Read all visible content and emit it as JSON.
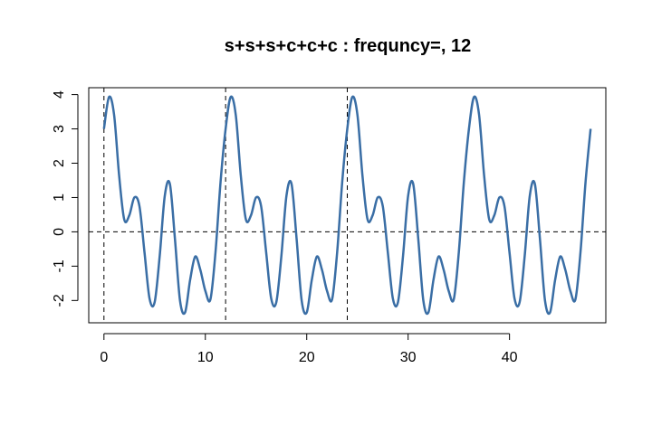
{
  "chart_data": {
    "type": "line",
    "title": "s+s+s+c+c+c : frequncy=, 12",
    "xlabel": "",
    "ylabel": "",
    "xlim": [
      -1.5,
      49.5
    ],
    "ylim": [
      -2.65,
      4.2
    ],
    "x_ticks": [
      0,
      10,
      20,
      30,
      40
    ],
    "y_ticks": [
      -2,
      -1,
      0,
      1,
      2,
      3,
      4
    ],
    "grid": false,
    "period": 12,
    "vertical_reference_lines": [
      0,
      12,
      24
    ],
    "horizontal_reference_lines": [
      0
    ],
    "line_color": "#3a6ea5",
    "series": [
      {
        "values_description_x": [
          0,
          0.5,
          1,
          1.5,
          2,
          2.5,
          3,
          3.5,
          4,
          4.5,
          5,
          5.5,
          6,
          6.5,
          7,
          7.5,
          8,
          8.5,
          9,
          9.5,
          10,
          10.5,
          11,
          11.5,
          12,
          12.5,
          13,
          13.5,
          14,
          14.5,
          15,
          15.5,
          16,
          16.5,
          17,
          17.5,
          18,
          18.5,
          19,
          19.5,
          20,
          20.5,
          21,
          21.5,
          22,
          22.5,
          23,
          23.5,
          24,
          24.5,
          25,
          25.5,
          26,
          26.5,
          27,
          27.5,
          28,
          28.5,
          29,
          29.5,
          30,
          30.5,
          31,
          31.5,
          32,
          32.5,
          33,
          33.5,
          34,
          34.5,
          35,
          35.5,
          36,
          36.5,
          37,
          37.5,
          38,
          38.5,
          39,
          39.5,
          40,
          40.5,
          41,
          41.5,
          42,
          42.5,
          43,
          43.5,
          44,
          44.5,
          45,
          45.5,
          46,
          46.5,
          47,
          47.5,
          48
        ],
        "values": [
          3.0,
          3.93,
          3.41,
          1.63,
          0.36,
          0.48,
          1.0,
          0.75,
          -0.6,
          -1.95,
          -2.05,
          -0.7,
          1.05,
          1.4,
          -0.2,
          -2.0,
          -2.35,
          -1.4,
          -0.72,
          -1.1,
          -1.72,
          -1.97,
          -0.6,
          1.45,
          3.0,
          3.93,
          3.41,
          1.63,
          0.36,
          0.48,
          1.0,
          0.75,
          -0.6,
          -1.95,
          -2.05,
          -0.7,
          1.05,
          1.4,
          -0.2,
          -2.0,
          -2.35,
          -1.4,
          -0.72,
          -1.1,
          -1.72,
          -1.97,
          -0.6,
          1.45,
          3.0,
          3.93,
          3.41,
          1.63,
          0.36,
          0.48,
          1.0,
          0.75,
          -0.6,
          -1.95,
          -2.05,
          -0.7,
          1.05,
          1.4,
          -0.2,
          -2.0,
          -2.35,
          -1.4,
          -0.72,
          -1.1,
          -1.72,
          -1.97,
          -0.6,
          1.45,
          3.0,
          3.93,
          3.41,
          1.63,
          0.36,
          0.48,
          1.0,
          0.75,
          -0.6,
          -1.95,
          -2.05,
          -0.7,
          1.05,
          1.4,
          -0.2,
          -2.0,
          -2.35,
          -1.4,
          -0.72,
          -1.1,
          -1.72,
          -1.97,
          -0.6,
          1.45,
          3.0
        ]
      }
    ]
  }
}
